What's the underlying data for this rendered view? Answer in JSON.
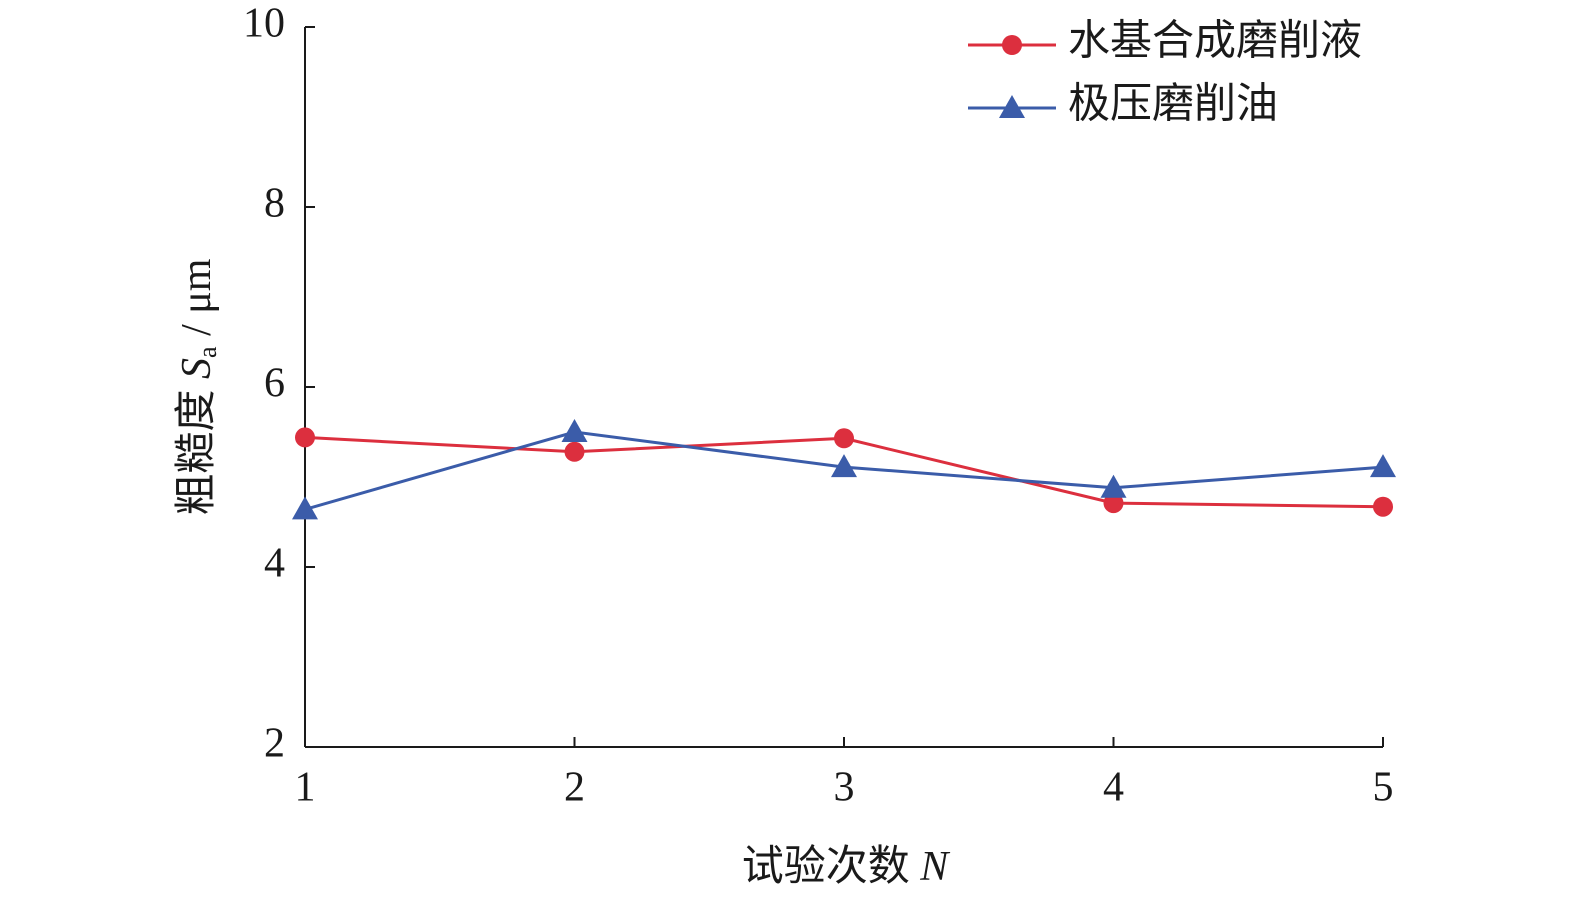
{
  "chart_data": {
    "type": "line",
    "x": [
      1,
      2,
      3,
      4,
      5
    ],
    "series": [
      {
        "name": "水基合成磨削液",
        "color": "#dc2f3e",
        "marker": "circle",
        "values": [
          5.44,
          5.28,
          5.43,
          4.71,
          4.67
        ]
      },
      {
        "name": "极压磨削油",
        "color": "#3b5ca9",
        "marker": "triangle",
        "values": [
          4.64,
          5.5,
          5.11,
          4.88,
          5.11
        ]
      }
    ],
    "xlim": [
      1,
      5
    ],
    "xticks": [
      1,
      2,
      3,
      4,
      5
    ],
    "ylim": [
      2,
      10
    ],
    "yticks": [
      2,
      4,
      6,
      8,
      10
    ],
    "x_label": [
      "试验次数 ",
      "N"
    ],
    "y_label": [
      "粗糙度 ",
      "S",
      "a",
      " / μm"
    ],
    "legend": "upper right",
    "grid": false
  }
}
